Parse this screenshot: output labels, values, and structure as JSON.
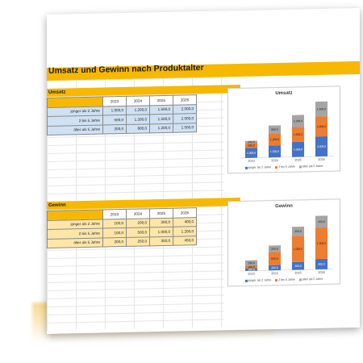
{
  "document": {
    "title": "Umsatz und Gewinn nach Produktalter"
  },
  "colors": {
    "accent": "#f6b800",
    "blue_fill": "#cfe1f3",
    "amber_fill": "#fde6a8",
    "series_blue": "#4472c4",
    "series_orange": "#ed7d31",
    "series_gray": "#a5a5a5"
  },
  "umsatz": {
    "label": "Umsatz",
    "years": [
      "2023",
      "2024",
      "2025",
      "2026"
    ],
    "rows": [
      {
        "label": "jünger als 2 Jahre",
        "values": [
          "1.000,0",
          "1.200,0",
          "1.500,0",
          "2.000,0"
        ]
      },
      {
        "label": "2 bis 5 Jahre",
        "values": [
          "500,0",
          "1.200,0",
          "1.500,0",
          "2.000,0"
        ]
      },
      {
        "label": "älter als 5 Jahre",
        "values": [
          "200,0",
          "800,0",
          "1.200,0",
          "1.500,0"
        ]
      }
    ]
  },
  "gewinn": {
    "label": "Gewinn",
    "years": [
      "2023",
      "2024",
      "2025",
      "2026"
    ],
    "rows": [
      {
        "label": "jünger als 2 Jahre",
        "values": [
          "100,0",
          "200,0",
          "300,0",
          "400,0"
        ]
      },
      {
        "label": "2 bis 5 Jahre",
        "values": [
          "100,0",
          "500,0",
          "1.000,0",
          "1.200,0"
        ]
      },
      {
        "label": "älter als 5 Jahre",
        "values": [
          "200,0",
          "250,0",
          "350,0",
          "450,0"
        ]
      }
    ]
  },
  "chart_data": [
    {
      "type": "bar",
      "stacked": true,
      "title": "Umsatz",
      "categories": [
        "2023",
        "2024",
        "2025",
        "2026"
      ],
      "series": [
        {
          "name": "jünger als 2 Jahre",
          "values": [
            1000,
            1200,
            1500,
            2000
          ],
          "labels": [
            "1.000,0",
            "1.200,0",
            "1.500,0",
            "2.000,0"
          ]
        },
        {
          "name": "2 bis 5 Jahre",
          "values": [
            500,
            1200,
            1500,
            2000
          ],
          "labels": [
            "500,0",
            "1.200,0",
            "1.500,0",
            "2.000,0"
          ]
        },
        {
          "name": "älter als 5 Jahre",
          "values": [
            200,
            800,
            1200,
            1500
          ],
          "labels": [
            "200,0",
            "800,0",
            "1.200,0",
            "1.500,0"
          ]
        }
      ],
      "ylim": [
        0,
        5500
      ],
      "legend": "bottom"
    },
    {
      "type": "bar",
      "stacked": true,
      "title": "Gewinn",
      "categories": [
        "2023",
        "2024",
        "2025",
        "2026"
      ],
      "series": [
        {
          "name": "jünger als 2 Jahre",
          "values": [
            100,
            200,
            300,
            400
          ],
          "labels": [
            "100,0",
            "200,0",
            "300,0",
            "400,0"
          ]
        },
        {
          "name": "2 bis 5 Jahre",
          "values": [
            100,
            500,
            1000,
            1200
          ],
          "labels": [
            "100,0",
            "500,0",
            "1.000,0",
            "1.200,0"
          ]
        },
        {
          "name": "älter als 5 Jahre",
          "values": [
            200,
            250,
            350,
            450
          ],
          "labels": [
            "200,0",
            "250,0",
            "350,0",
            "450,0"
          ]
        }
      ],
      "ylim": [
        0,
        2100
      ],
      "legend": "bottom"
    }
  ]
}
